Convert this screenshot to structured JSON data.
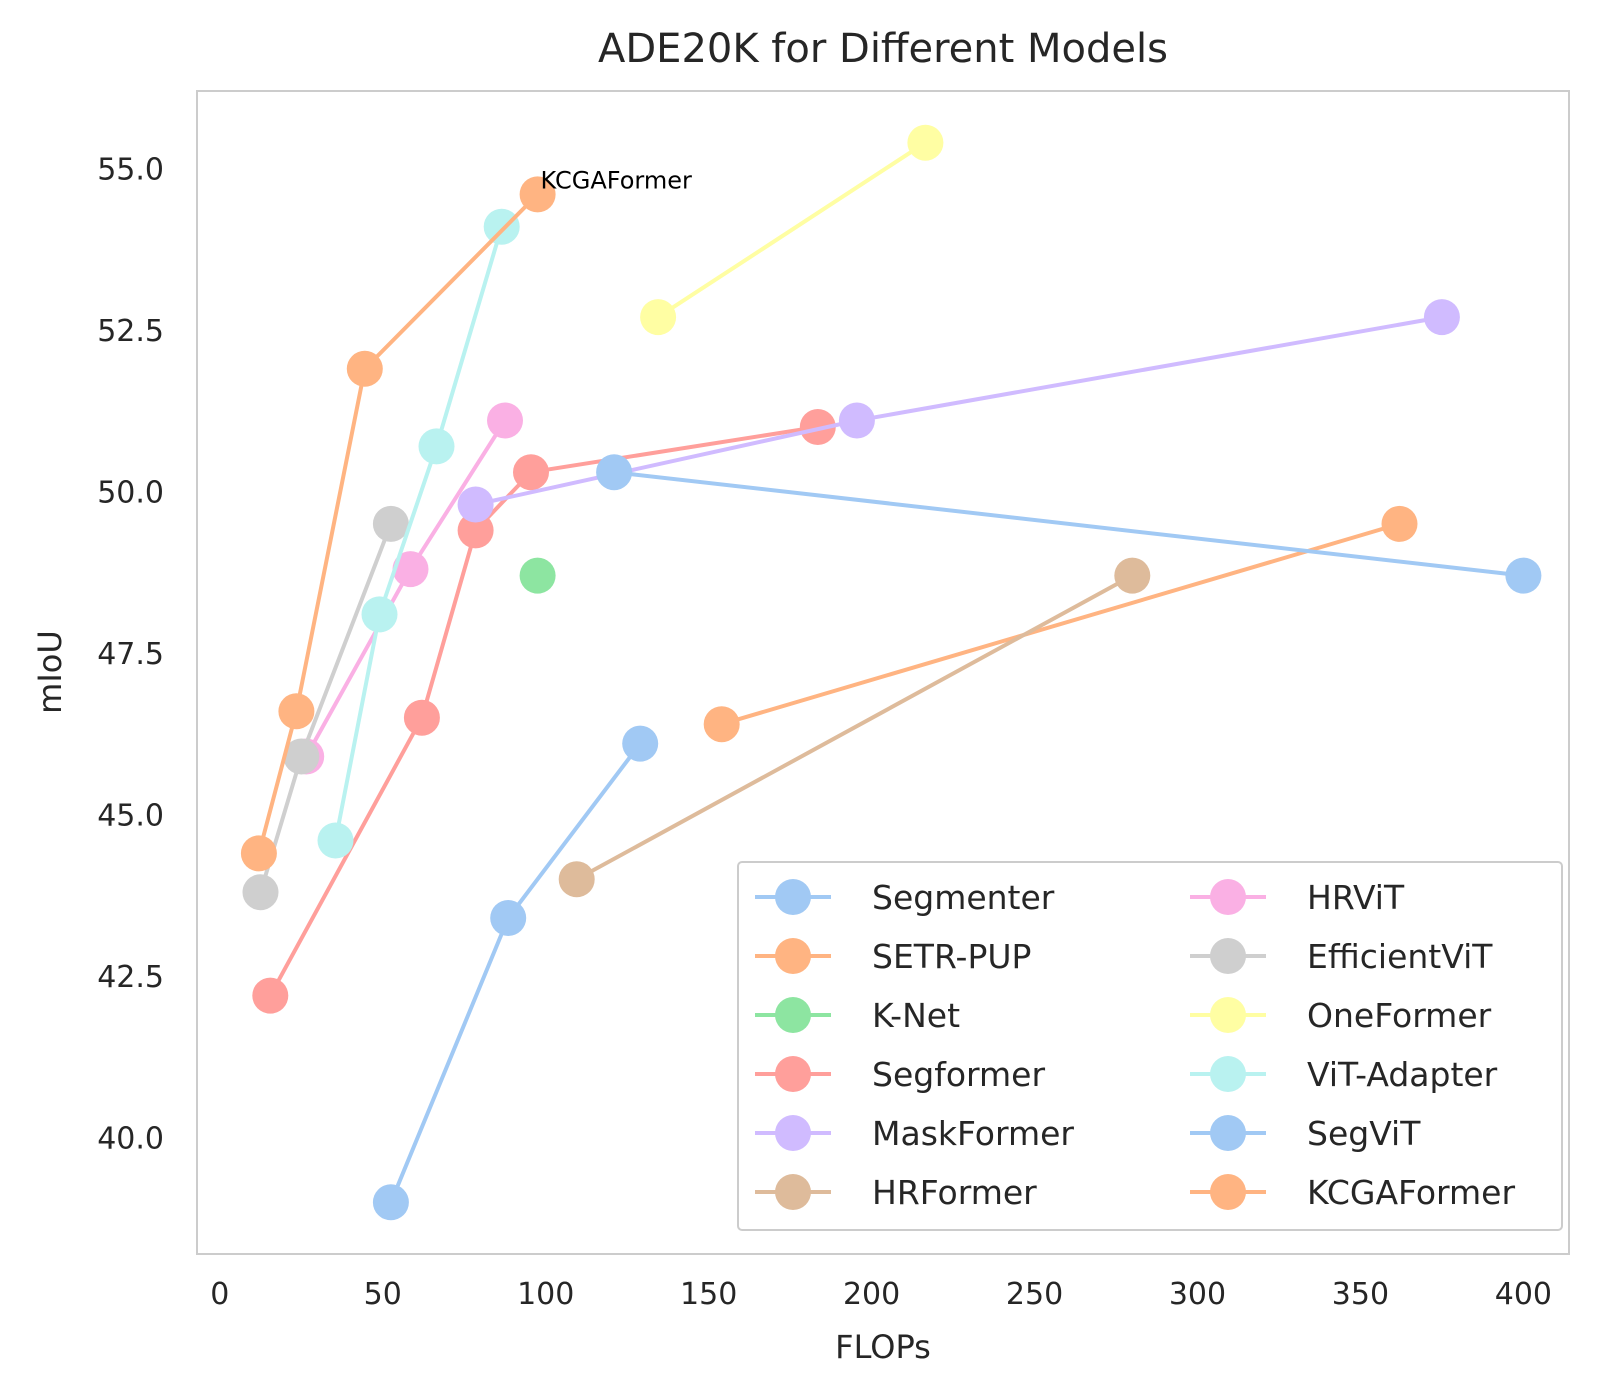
{
  "chart_data": {
    "type": "line",
    "title": "ADE20K for Different Models",
    "xlabel": "FLOPs",
    "ylabel": "mIoU",
    "xlim": [
      -7,
      414
    ],
    "ylim": [
      38.2,
      56.2
    ],
    "xticks": [
      0,
      50,
      100,
      150,
      200,
      250,
      300,
      350,
      400
    ],
    "yticks": [
      40.0,
      42.5,
      45.0,
      47.5,
      50.0,
      52.5,
      55.0
    ],
    "xtick_labels": [
      "0",
      "50",
      "100",
      "150",
      "200",
      "250",
      "300",
      "350",
      "400"
    ],
    "ytick_labels": [
      "40.0",
      "42.5",
      "45.0",
      "47.5",
      "50.0",
      "52.5",
      "55.0"
    ],
    "grid": false,
    "legend": {
      "placement": "lower-right",
      "columns": 2
    },
    "series": [
      {
        "name": "Segmenter",
        "color": "#a1c9f4",
        "points": [
          [
            52.5,
            39.0
          ],
          [
            88.5,
            43.4
          ],
          [
            129,
            46.1
          ]
        ]
      },
      {
        "name": "SETR-PUP",
        "color": "#ffb482",
        "points": [
          [
            154,
            46.4
          ],
          [
            362,
            49.5
          ]
        ]
      },
      {
        "name": "K-Net",
        "color": "#8de5a1",
        "points": [
          [
            97.5,
            48.7
          ]
        ]
      },
      {
        "name": "Segformer",
        "color": "#ff9f9b",
        "points": [
          [
            15.5,
            42.2
          ],
          [
            62,
            46.5
          ],
          [
            78.5,
            49.4
          ],
          [
            95.5,
            50.3
          ],
          [
            183.5,
            51.0
          ]
        ]
      },
      {
        "name": "MaskFormer",
        "color": "#d0bbff",
        "points": [
          [
            78.5,
            49.8
          ],
          [
            195.5,
            51.1
          ],
          [
            375,
            52.7
          ]
        ]
      },
      {
        "name": "HRFormer",
        "color": "#debb9b",
        "points": [
          [
            109.5,
            44.0
          ],
          [
            280,
            48.7
          ]
        ]
      },
      {
        "name": "HRViT",
        "color": "#fab0e4",
        "points": [
          [
            26.5,
            45.9
          ],
          [
            58.5,
            48.8
          ],
          [
            87.5,
            51.1
          ]
        ]
      },
      {
        "name": "EfficientViT",
        "color": "#cfcfcf",
        "points": [
          [
            12.5,
            43.8
          ],
          [
            25,
            45.9
          ],
          [
            52.5,
            49.5
          ]
        ]
      },
      {
        "name": "OneFormer",
        "color": "#fffea3",
        "points": [
          [
            134.5,
            52.7
          ],
          [
            216.5,
            55.4
          ]
        ]
      },
      {
        "name": "ViT-Adapter",
        "color": "#b9f2f0",
        "points": [
          [
            35.5,
            44.6
          ],
          [
            49,
            48.1
          ],
          [
            66.5,
            50.7
          ],
          [
            86.5,
            54.1
          ]
        ]
      },
      {
        "name": "SegViT",
        "color": "#a1c9f4",
        "points": [
          [
            121,
            50.3
          ],
          [
            400,
            48.7
          ]
        ]
      },
      {
        "name": "KCGAFormer",
        "color": "#ffb482",
        "points": [
          [
            12,
            44.4
          ],
          [
            23.5,
            46.6
          ],
          [
            44.5,
            51.9
          ],
          [
            97.5,
            54.6
          ]
        ]
      }
    ],
    "annotations": [
      {
        "text": "KCGAFormer",
        "x": 97.5,
        "y": 54.6
      }
    ]
  }
}
